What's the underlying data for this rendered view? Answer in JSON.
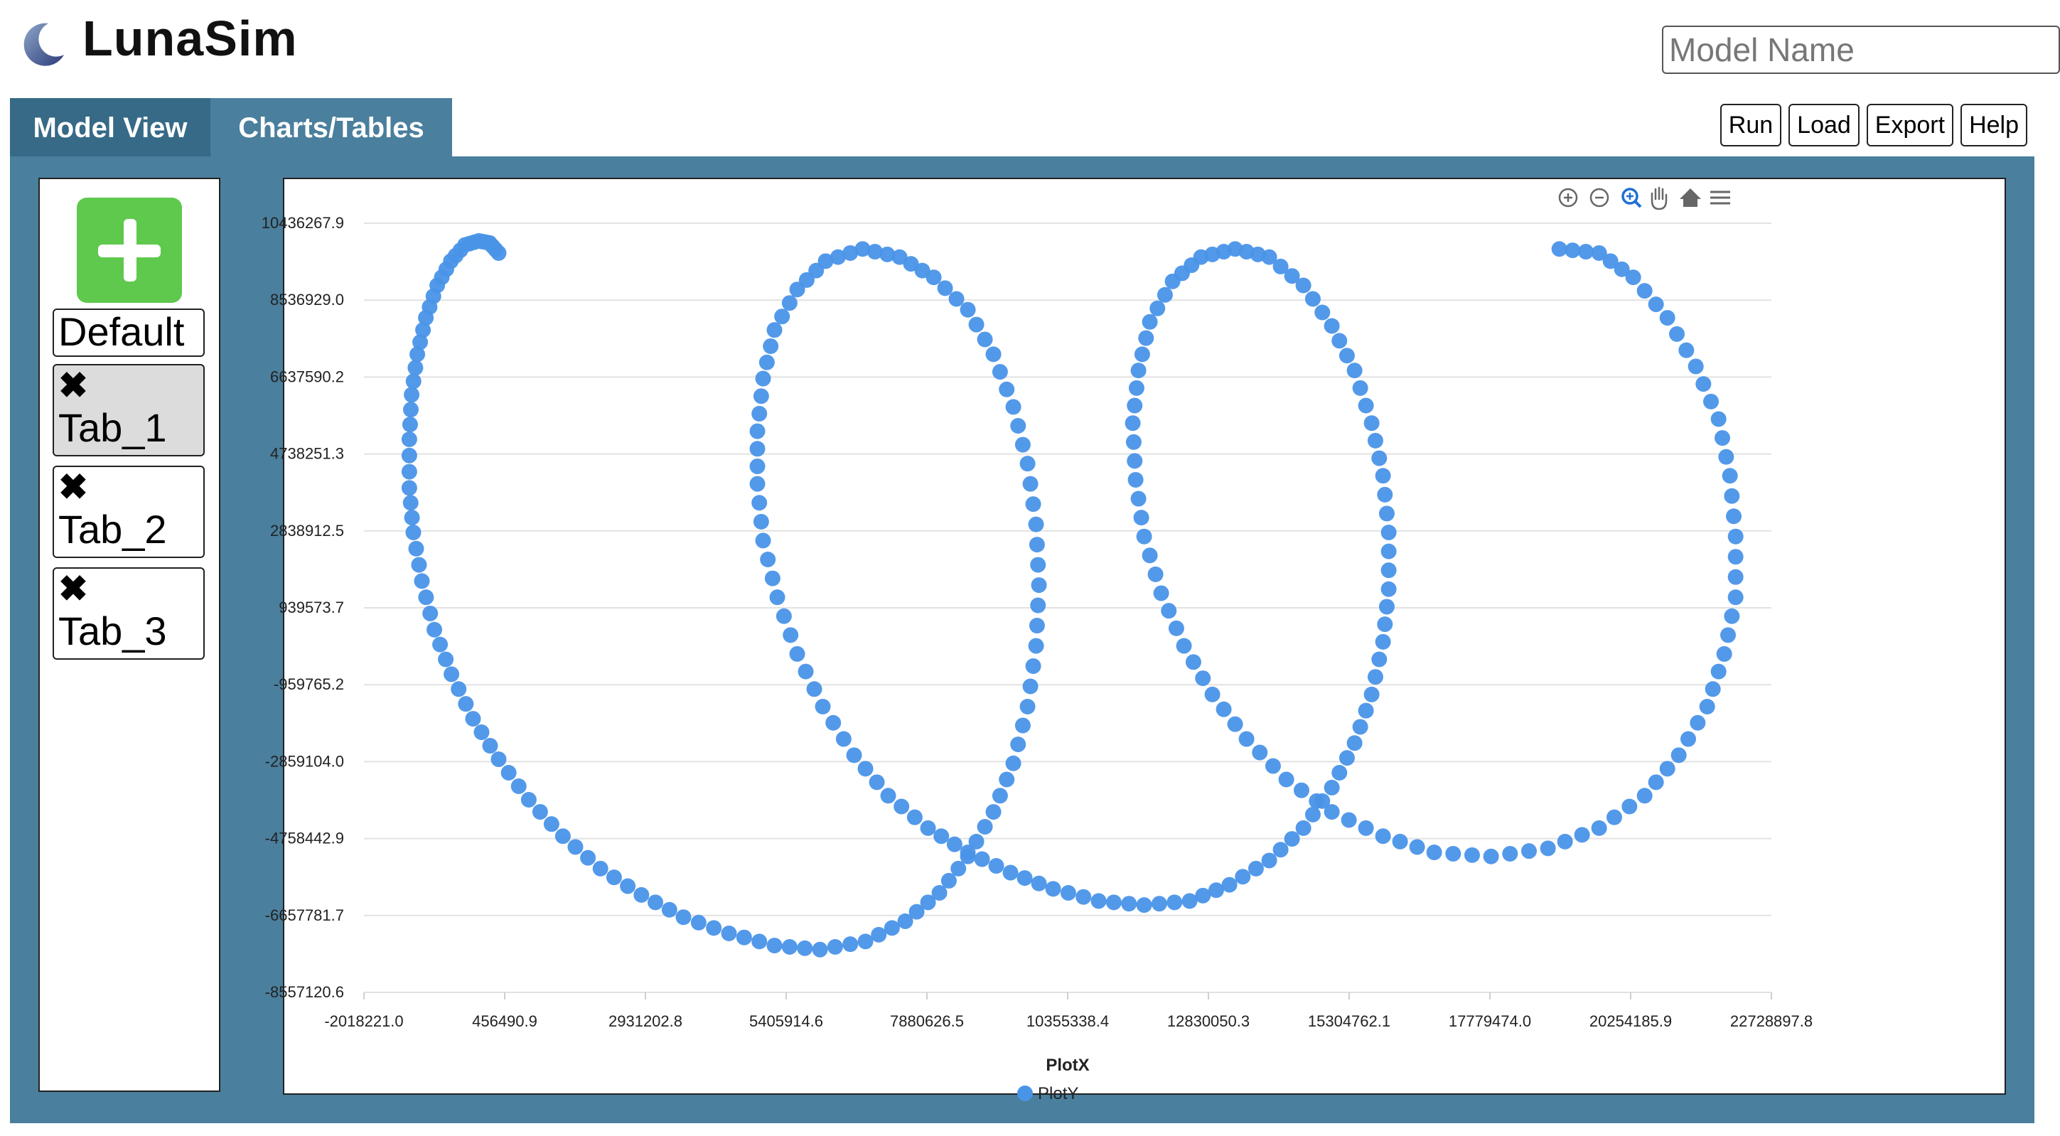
{
  "app": {
    "title": "LunaSim"
  },
  "model_name": {
    "placeholder": "Model Name",
    "value": ""
  },
  "tabs": [
    {
      "label": "Model View",
      "active": false
    },
    {
      "label": "Charts/Tables",
      "active": true
    }
  ],
  "toolbar": {
    "run": "Run",
    "load": "Load",
    "export": "Export",
    "help": "Help"
  },
  "sidebar": {
    "add_icon": "plus-icon",
    "items": [
      {
        "label": "Default",
        "closable": false,
        "selected": false
      },
      {
        "label": "Tab_1",
        "closable": true,
        "selected": true
      },
      {
        "label": "Tab_2",
        "closable": true,
        "selected": false
      },
      {
        "label": "Tab_3",
        "closable": true,
        "selected": false
      }
    ],
    "close_glyph": "✖"
  },
  "chart_toolbar_icons": [
    "zoom-in-icon",
    "zoom-out-icon",
    "zoom-select-icon",
    "pan-hand-icon",
    "home-reset-icon",
    "menu-icon"
  ],
  "chart_data": {
    "type": "scatter",
    "xlabel": "PlotX",
    "ylabel": "",
    "legend": {
      "entries": [
        "PlotY"
      ],
      "position": "bottom-center"
    },
    "grid": {
      "horizontal": true,
      "vertical": false
    },
    "series_color": "#4a94e8",
    "xlim": [
      -2018221.0,
      22728897.8
    ],
    "ylim": [
      -8557120.6,
      10436267.9
    ],
    "xticks": [
      "-2018221.0",
      "456490.9",
      "2931202.8",
      "5405914.6",
      "7880626.5",
      "10355338.4",
      "12830050.3",
      "15304762.1",
      "17779474.0",
      "20254185.9",
      "22728897.8"
    ],
    "yticks": [
      "10436267.9",
      "8536929.0",
      "6637590.2",
      "4738251.3",
      "2838912.5",
      "939573.7",
      "-959765.2",
      "-2859104.0",
      "-4758442.9",
      "-6657781.7",
      "-8557120.6"
    ],
    "series": [
      {
        "name": "PlotY",
        "points": [
          [
            350000.0,
            9700000.0
          ],
          [
            190000.0,
            9950000.0
          ],
          [
            0.0,
            10000000.0
          ],
          [
            -240000.0,
            9900000.0
          ],
          [
            -490000.0,
            9500000.0
          ],
          [
            -730000.0,
            8900000.0
          ],
          [
            -930000.0,
            8100000.0
          ],
          [
            -1080000.0,
            7200000.0
          ],
          [
            -1180000.0,
            6200000.0
          ],
          [
            -1220000.0,
            5100000.0
          ],
          [
            -1220000.0,
            3900000.0
          ],
          [
            -1150000.0,
            2800000.0
          ],
          [
            -1000000.0,
            1600000.0
          ],
          [
            -780000.0,
            400000.0
          ],
          [
            -480000.0,
            -700000.0
          ],
          [
            -100000.0,
            -1800000.0
          ],
          [
            350000.0,
            -2800000.0
          ],
          [
            880000.0,
            -3800000.0
          ],
          [
            1480000.0,
            -4700000.0
          ],
          [
            2140000.0,
            -5500000.0
          ],
          [
            2860000.0,
            -6150000.0
          ],
          [
            3600000.0,
            -6700000.0
          ],
          [
            4400000.0,
            -7100000.0
          ],
          [
            5200000.0,
            -7400000.0
          ],
          [
            6000000.0,
            -7500000.0
          ],
          [
            6800000.0,
            -7300000.0
          ],
          [
            7500000.0,
            -6800000.0
          ],
          [
            8100000.0,
            -6100000.0
          ],
          [
            8600000.0,
            -5200000.0
          ],
          [
            9050000.0,
            -4100000.0
          ],
          [
            9400000.0,
            -2900000.0
          ],
          [
            9650000.0,
            -1500000.0
          ],
          [
            9800000.0,
            0.0
          ],
          [
            9850000.0,
            1500000.0
          ],
          [
            9800000.0,
            3000000.0
          ],
          [
            9650000.0,
            4500000.0
          ],
          [
            9400000.0,
            5900000.0
          ],
          [
            9050000.0,
            7200000.0
          ],
          [
            8600000.0,
            8300000.0
          ],
          [
            8000000.0,
            9100000.0
          ],
          [
            7400000.0,
            9600000.0
          ],
          [
            6750000.0,
            9800000.0
          ],
          [
            6100000.0,
            9500000.0
          ],
          [
            5600000.0,
            8800000.0
          ],
          [
            5200000.0,
            7800000.0
          ],
          [
            5000000.0,
            6600000.0
          ],
          [
            4900000.0,
            5300000.0
          ],
          [
            4900000.0,
            4000000.0
          ],
          [
            5000000.0,
            2600000.0
          ],
          [
            5250000.0,
            1200000.0
          ],
          [
            5600000.0,
            -200000.0
          ],
          [
            6050000.0,
            -1500000.0
          ],
          [
            6600000.0,
            -2700000.0
          ],
          [
            7200000.0,
            -3700000.0
          ],
          [
            7900000.0,
            -4500000.0
          ],
          [
            8600000.0,
            -5100000.0
          ],
          [
            9350000.0,
            -5600000.0
          ],
          [
            10100000.0,
            -6000000.0
          ],
          [
            10900000.0,
            -6300000.0
          ],
          [
            11700000.0,
            -6400000.0
          ],
          [
            12500000.0,
            -6300000.0
          ],
          [
            13200000.0,
            -5900000.0
          ],
          [
            13900000.0,
            -5300000.0
          ],
          [
            14500000.0,
            -4500000.0
          ],
          [
            15000000.0,
            -3500000.0
          ],
          [
            15400000.0,
            -2400000.0
          ],
          [
            15700000.0,
            -1200000.0
          ],
          [
            15900000.0,
            100000.0
          ],
          [
            16000000.0,
            1400000.0
          ],
          [
            16000000.0,
            2800000.0
          ],
          [
            15900000.0,
            4200000.0
          ],
          [
            15700000.0,
            5500000.0
          ],
          [
            15400000.0,
            6800000.0
          ],
          [
            15000000.0,
            7900000.0
          ],
          [
            14500000.0,
            8900000.0
          ],
          [
            13900000.0,
            9600000.0
          ],
          [
            13300000.0,
            9800000.0
          ],
          [
            12700000.0,
            9600000.0
          ],
          [
            12200000.0,
            9000000.0
          ],
          [
            11800000.0,
            8000000.0
          ],
          [
            11600000.0,
            6800000.0
          ],
          [
            11500000.0,
            5500000.0
          ],
          [
            11550000.0,
            4100000.0
          ],
          [
            11700000.0,
            2700000.0
          ],
          [
            12000000.0,
            1300000.0
          ],
          [
            12400000.0,
            0.0
          ],
          [
            12900000.0,
            -1200000.0
          ],
          [
            13500000.0,
            -2300000.0
          ],
          [
            14200000.0,
            -3300000.0
          ],
          [
            15000000.0,
            -4100000.0
          ],
          [
            15900000.0,
            -4700000.0
          ],
          [
            16800000.0,
            -5100000.0
          ],
          [
            17800000.0,
            -5200000.0
          ],
          [
            18800000.0,
            -5000000.0
          ],
          [
            19700000.0,
            -4500000.0
          ],
          [
            20500000.0,
            -3700000.0
          ],
          [
            21100000.0,
            -2700000.0
          ],
          [
            21600000.0,
            -1500000.0
          ],
          [
            21900000.0,
            -200000.0
          ],
          [
            22100000.0,
            1200000.0
          ],
          [
            22100000.0,
            2700000.0
          ],
          [
            22000000.0,
            4200000.0
          ],
          [
            21800000.0,
            5600000.0
          ],
          [
            21400000.0,
            6900000.0
          ],
          [
            20900000.0,
            8100000.0
          ],
          [
            20300000.0,
            9100000.0
          ],
          [
            19700000.0,
            9700000.0
          ],
          [
            19000000.0,
            9800000.0
          ]
        ]
      }
    ]
  }
}
